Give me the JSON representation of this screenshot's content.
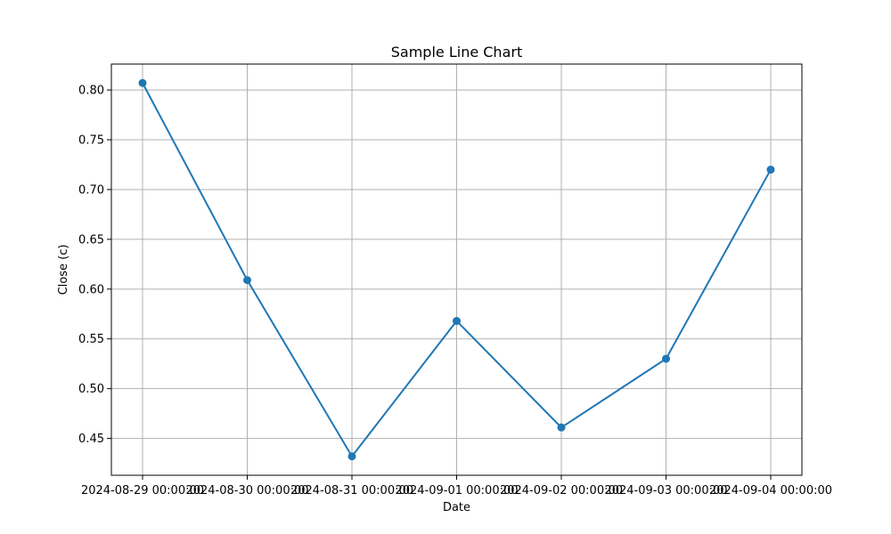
{
  "chart_data": {
    "type": "line",
    "title": "Sample Line Chart",
    "xlabel": "Date",
    "ylabel": "Close (c)",
    "x": [
      "2024-08-29 00:00:00",
      "2024-08-30 00:00:00",
      "2024-08-31 00:00:00",
      "2024-09-01 00:00:00",
      "2024-09-02 00:00:00",
      "2024-09-03 00:00:00",
      "2024-09-04 00:00:00"
    ],
    "series": [
      {
        "values": [
          0.807,
          0.609,
          0.432,
          0.568,
          0.461,
          0.53,
          0.72
        ],
        "color": "#1f77b4",
        "marker": "circle"
      }
    ],
    "yticks": [
      "0.45",
      "0.50",
      "0.55",
      "0.60",
      "0.65",
      "0.70",
      "0.75",
      "0.80"
    ],
    "ylim": [
      0.413,
      0.826
    ],
    "grid": true
  }
}
